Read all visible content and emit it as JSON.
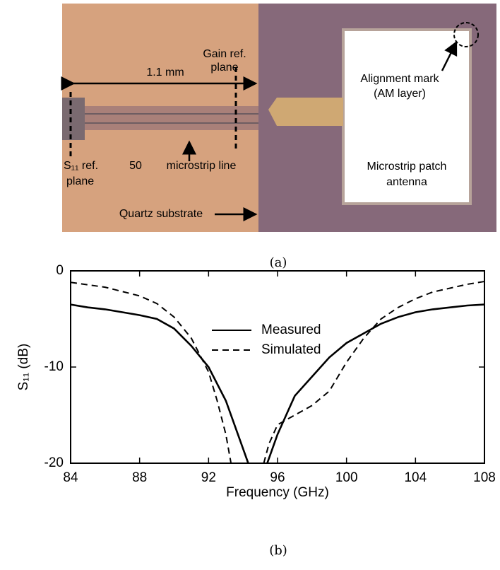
{
  "figure_a": {
    "dimension": "1.1 mm",
    "gain_ref": [
      "Gain ref.",
      "plane"
    ],
    "s11_ref": [
      "S₁₁ ref.",
      "plane"
    ],
    "impedance": "50",
    "line_label": "microstrip line",
    "substrate": "Quartz substrate",
    "alignment": [
      "Alignment mark",
      "(AM layer)"
    ],
    "antenna": [
      "Microstrip patch",
      "antenna"
    ],
    "caption": "(a)"
  },
  "chart_data": {
    "type": "line",
    "xlabel": "Frequency (GHz)",
    "ylabel": "S₁₁ (dB)",
    "xlim": [
      84,
      108
    ],
    "ylim": [
      -20,
      0
    ],
    "xticks": [
      84,
      88,
      92,
      96,
      100,
      104,
      108
    ],
    "yticks": [
      0,
      -10,
      -20
    ],
    "grid": false,
    "legend": "upper center",
    "series": [
      {
        "name": "Measured",
        "color": "#000000",
        "dash": "solid",
        "x": [
          84,
          85,
          86,
          87,
          88,
          89,
          90,
          91,
          92,
          93,
          93.5,
          94,
          94.3,
          95,
          95.4,
          96,
          96.5,
          97,
          98,
          99,
          100,
          101,
          102,
          103,
          104,
          105,
          106,
          107,
          108
        ],
        "values": [
          -3.5,
          -3.8,
          -4.0,
          -4.3,
          -4.6,
          -5.0,
          -6.0,
          -7.8,
          -10.0,
          -13.5,
          -16,
          -18.5,
          -20,
          null,
          -20,
          -17,
          -15,
          -13,
          -11,
          -9,
          -7.5,
          -6.5,
          -5.5,
          -4.8,
          -4.3,
          -4.0,
          -3.8,
          -3.6,
          -3.5
        ]
      },
      {
        "name": "Simulated",
        "color": "#000000",
        "dash": "dashed",
        "x": [
          84,
          86,
          88,
          89,
          90,
          91,
          92,
          92.5,
          93,
          93.3,
          94,
          95.2,
          95.5,
          96,
          97,
          98,
          99,
          100,
          101,
          102,
          103,
          104,
          105,
          106,
          107,
          108
        ],
        "values": [
          -1.2,
          -1.7,
          -2.6,
          -3.4,
          -4.8,
          -7.0,
          -10.5,
          -13.5,
          -17,
          -20,
          null,
          -20,
          -18,
          -16,
          -15,
          -14,
          -12.5,
          -9.5,
          -7,
          -5,
          -3.8,
          -2.9,
          -2.2,
          -1.8,
          -1.4,
          -1.1
        ]
      }
    ],
    "caption": "(b)"
  }
}
